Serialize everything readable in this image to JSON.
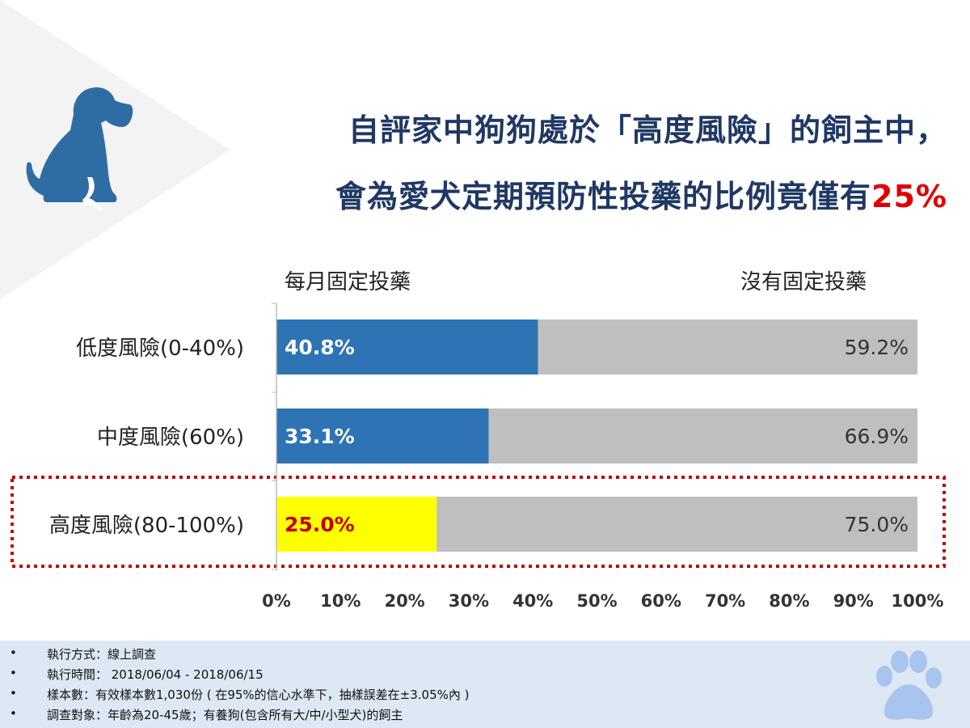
{
  "title": {
    "line1": "自評家中狗狗處於「高度風險」的飼主中，",
    "line2_prefix": "會為愛犬定期預防性投藥的比例竟僅有",
    "line2_highlight": "25%"
  },
  "colors": {
    "title": "#1f3864",
    "highlight": "#e00000",
    "monthly": "#2e74b5",
    "none": "#bfbfbf",
    "high_risk_monthly": "#ffff00",
    "dotted_box": "#c00000"
  },
  "icons": {
    "dog": "dog-silhouette-icon",
    "paw": "paw-print-icon"
  },
  "chart_data": {
    "type": "bar",
    "orientation": "horizontal",
    "stacked": true,
    "categories": [
      "低度風險(0-40%)",
      "中度風險(60%)",
      "高度風險(80-100%)"
    ],
    "series": [
      {
        "name": "每月固定投藥",
        "values": [
          40.8,
          33.1,
          25.0
        ],
        "labels": [
          "40.8%",
          "33.1%",
          "25.0%"
        ]
      },
      {
        "name": "沒有固定投藥",
        "values": [
          59.2,
          66.9,
          75.0
        ],
        "labels": [
          "59.2%",
          "66.9%",
          "75.0%"
        ]
      }
    ],
    "xlim": [
      0,
      100
    ],
    "xticks": [
      "0%",
      "10%",
      "20%",
      "30%",
      "40%",
      "50%",
      "60%",
      "70%",
      "80%",
      "90%",
      "100%"
    ],
    "legend_placement": "top",
    "highlighted_category": "高度風險(80-100%)",
    "grid": false
  },
  "footer": {
    "bullet": "•",
    "items": [
      "執行方式：線上調查",
      "執行時間： 2018/06/04 - 2018/06/15",
      "樣本數：有效樣本數1,030份 ( 在95%的信心水準下，抽樣誤差在±3.05%內 )",
      "調查對象：年齡為20-45歲；有養狗(包含所有大/中/小型犬)的飼主"
    ]
  }
}
